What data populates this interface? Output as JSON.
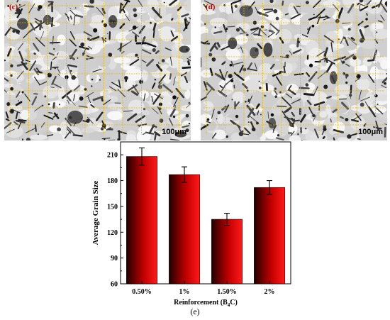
{
  "panels": [
    {
      "id": "c",
      "label": "(c)",
      "scale": "100μm",
      "label_color": "#c00000",
      "scale_color": "#000000"
    },
    {
      "id": "d",
      "label": "(d)",
      "scale": "100μm",
      "label_color": "#c00000",
      "scale_color": "#000000"
    }
  ],
  "caption": "(e)",
  "colors": {
    "grid": "#e8b400",
    "bar_dark": "#200000",
    "bar_bright": "#ff1a1a"
  },
  "chart_data": {
    "type": "bar",
    "categories": [
      "0.50%",
      "1%",
      "1.50%",
      "2%"
    ],
    "values": [
      208,
      187,
      135,
      172
    ],
    "errors": [
      10,
      9,
      7,
      8
    ],
    "ylabel": "Average Grain Size",
    "xlabel_main": "Reinforcement (B",
    "xlabel_sub": "4",
    "xlabel_end": "C)",
    "ylim": [
      60,
      225
    ],
    "yticks": [
      "60",
      "90",
      "120",
      "150",
      "180",
      "210"
    ]
  }
}
